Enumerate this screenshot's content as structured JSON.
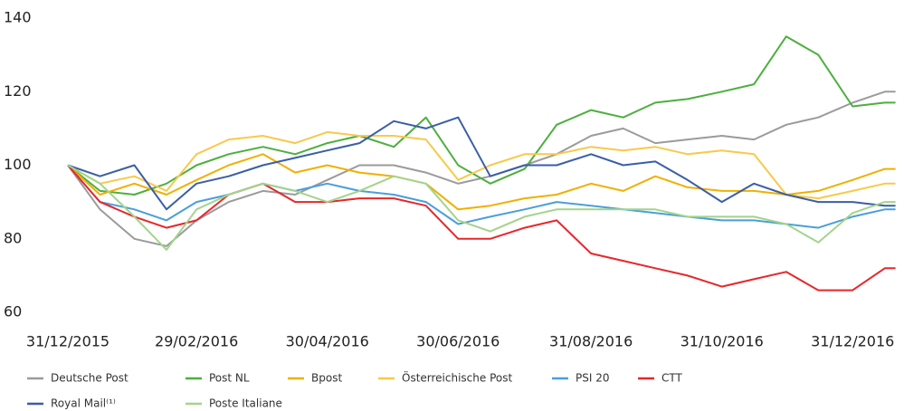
{
  "chart_data": {
    "type": "line",
    "x": [
      "31/12/2015",
      "15/01/2016",
      "31/01/2016",
      "15/02/2016",
      "29/02/2016",
      "15/03/2016",
      "31/03/2016",
      "15/04/2016",
      "30/04/2016",
      "15/05/2016",
      "31/05/2016",
      "15/06/2016",
      "30/06/2016",
      "15/07/2016",
      "31/07/2016",
      "15/08/2016",
      "31/08/2016",
      "15/09/2016",
      "30/09/2016",
      "15/10/2016",
      "31/10/2016",
      "15/11/2016",
      "30/11/2016",
      "15/12/2016",
      "31/12/2016",
      "15/01/2017",
      "20/01/2017"
    ],
    "series": [
      {
        "name": "Deutsche Post",
        "color": "#9b9b9b",
        "values": [
          100,
          88,
          80,
          78,
          85,
          90,
          93,
          92,
          96,
          100,
          100,
          98,
          95,
          97,
          100,
          103,
          108,
          110,
          106,
          107,
          108,
          107,
          111,
          113,
          117,
          120,
          120
        ]
      },
      {
        "name": "Post NL",
        "color": "#4caf3e",
        "values": [
          100,
          93,
          92,
          95,
          100,
          103,
          105,
          103,
          106,
          108,
          105,
          113,
          100,
          95,
          99,
          111,
          115,
          113,
          117,
          118,
          120,
          122,
          135,
          130,
          116,
          117,
          117
        ]
      },
      {
        "name": "Bpost",
        "color": "#f0b000",
        "values": [
          100,
          92,
          95,
          92,
          96,
          100,
          103,
          98,
          100,
          98,
          97,
          95,
          88,
          89,
          91,
          92,
          95,
          93,
          97,
          94,
          93,
          93,
          92,
          93,
          96,
          99,
          99
        ]
      },
      {
        "name": "Österreichische Post",
        "color": "#f8c94a",
        "values": [
          100,
          95,
          97,
          93,
          103,
          107,
          108,
          106,
          109,
          108,
          108,
          107,
          96,
          100,
          103,
          103,
          105,
          104,
          105,
          103,
          104,
          103,
          92,
          91,
          93,
          95,
          95
        ]
      },
      {
        "name": "PSI 20",
        "color": "#4a9fd8",
        "values": [
          100,
          90,
          88,
          85,
          90,
          92,
          95,
          93,
          95,
          93,
          92,
          90,
          84,
          86,
          88,
          90,
          89,
          88,
          87,
          86,
          85,
          85,
          84,
          83,
          86,
          88,
          88
        ]
      },
      {
        "name": "CTT",
        "color": "#e8262b",
        "values": [
          100,
          90,
          86,
          83,
          85,
          92,
          95,
          90,
          90,
          91,
          91,
          89,
          80,
          80,
          83,
          85,
          76,
          74,
          72,
          70,
          67,
          69,
          71,
          66,
          66,
          72,
          72
        ]
      },
      {
        "name": "Royal Mail⁽¹⁾",
        "color": "#3a5ea8",
        "values": [
          100,
          97,
          100,
          88,
          95,
          97,
          100,
          102,
          104,
          106,
          112,
          110,
          113,
          97,
          100,
          100,
          103,
          100,
          101,
          96,
          90,
          95,
          92,
          90,
          90,
          89,
          89
        ]
      },
      {
        "name": "Poste Italiane",
        "color": "#a3d48c",
        "values": [
          100,
          95,
          86,
          77,
          88,
          92,
          95,
          93,
          90,
          93,
          97,
          95,
          85,
          82,
          86,
          88,
          88,
          88,
          88,
          86,
          86,
          86,
          84,
          79,
          87,
          90,
          90
        ]
      }
    ],
    "xlim": [
      "31/12/2015",
      "21/01/2017"
    ],
    "xticks": [
      "31/12/2015",
      "29/02/2016",
      "30/04/2016",
      "30/06/2016",
      "31/08/2016",
      "31/10/2016",
      "31/12/2016"
    ],
    "ylim": [
      60,
      140
    ],
    "yticks": [
      60,
      80,
      100,
      120,
      140
    ]
  }
}
